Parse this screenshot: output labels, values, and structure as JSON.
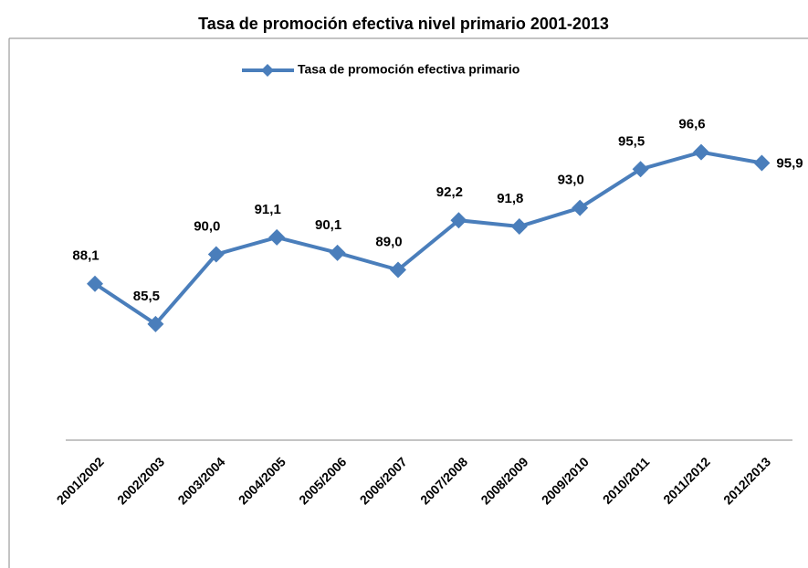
{
  "chart_data": {
    "type": "line",
    "title": "Tasa de promoción efectiva nivel primario 2001-2013",
    "categories": [
      "2001/2002",
      "2002/2003",
      "2003/2004",
      "2004/2005",
      "2005/2006",
      "2006/2007",
      "2007/2008",
      "2008/2009",
      "2009/2010",
      "2010/2011",
      "2011/2012",
      "2012/2013"
    ],
    "series": [
      {
        "name": "Tasa de promoción efectiva primario",
        "color": "#4a7ebb",
        "values": [
          88.1,
          85.5,
          90.0,
          91.1,
          90.1,
          89.0,
          92.2,
          91.8,
          93.0,
          95.5,
          96.6,
          95.9
        ],
        "value_labels": [
          "88,1",
          "85,5",
          "90,0",
          "91,1",
          "90,1",
          "89,0",
          "92,2",
          "91,8",
          "93,0",
          "95,5",
          "96,6",
          "95,9"
        ]
      }
    ],
    "ylim": [
      78,
      100
    ],
    "legend": "top"
  }
}
